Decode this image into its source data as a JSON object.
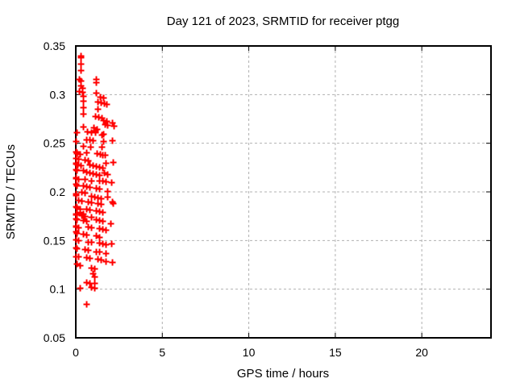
{
  "window": {
    "background": "#ffffff"
  },
  "chart_data": {
    "type": "scatter",
    "title": "Day 121 of 2023, SRMTID for receiver ptgg",
    "xlabel": "GPS time / hours",
    "ylabel": "SRMTID / TECUs",
    "xlim": [
      0,
      24
    ],
    "ylim": [
      0.05,
      0.35
    ],
    "xticks": [
      0,
      5,
      10,
      15,
      20
    ],
    "xtick_labels": [
      "0",
      "5",
      "10",
      "15",
      "20"
    ],
    "yticks": [
      0.05,
      0.1,
      0.15,
      0.2,
      0.25,
      0.3,
      0.35
    ],
    "ytick_labels": [
      "0.05",
      "0.1",
      "0.15",
      "0.2",
      "0.25",
      "0.3",
      "0.35"
    ],
    "grid": true,
    "legend_position": "none",
    "marker_shape": "plus",
    "marker_color": "#ff0000",
    "grid_color": "#b0b0b0",
    "border_color": "#000000",
    "series": [
      {
        "name": "SRMTID",
        "points": [
          [
            0.28,
            0.34
          ],
          [
            0.28,
            0.338
          ],
          [
            0.28,
            0.332
          ],
          [
            0.28,
            0.325
          ],
          [
            0.19,
            0.316
          ],
          [
            0.28,
            0.314
          ],
          [
            1.16,
            0.316
          ],
          [
            1.16,
            0.313
          ],
          [
            0.28,
            0.309
          ],
          [
            0.37,
            0.307
          ],
          [
            0.19,
            0.304
          ],
          [
            0.37,
            0.303
          ],
          [
            1.16,
            0.302
          ],
          [
            0.42,
            0.299
          ],
          [
            1.4,
            0.298
          ],
          [
            1.58,
            0.297
          ],
          [
            0.42,
            0.294
          ],
          [
            1.26,
            0.293
          ],
          [
            1.44,
            0.292
          ],
          [
            1.63,
            0.291
          ],
          [
            1.77,
            0.29
          ],
          [
            0.42,
            0.287
          ],
          [
            1.26,
            0.285
          ],
          [
            0.42,
            0.28
          ],
          [
            1.12,
            0.278
          ],
          [
            1.3,
            0.277
          ],
          [
            1.49,
            0.276
          ],
          [
            1.58,
            0.274
          ],
          [
            1.77,
            0.273
          ],
          [
            1.67,
            0.27
          ],
          [
            1.81,
            0.269
          ],
          [
            0.42,
            0.267
          ],
          [
            1.02,
            0.266
          ],
          [
            1.21,
            0.265
          ],
          [
            1.12,
            0.263
          ],
          [
            1.58,
            0.26
          ],
          [
            2.09,
            0.271
          ],
          [
            2.19,
            0.268
          ],
          [
            0.05,
            0.261
          ],
          [
            0.65,
            0.262
          ],
          [
            0.88,
            0.261
          ],
          [
            1.12,
            0.261
          ],
          [
            1.49,
            0.259
          ],
          [
            0.0,
            0.252
          ],
          [
            0.6,
            0.254
          ],
          [
            0.79,
            0.254
          ],
          [
            0.98,
            0.253
          ],
          [
            1.58,
            0.252
          ],
          [
            2.09,
            0.253
          ],
          [
            0.42,
            0.247
          ],
          [
            0.84,
            0.246
          ],
          [
            1.49,
            0.246
          ],
          [
            0.0,
            0.2415
          ],
          [
            0.03,
            0.2405
          ],
          [
            0.05,
            0.24
          ],
          [
            0.23,
            0.239
          ],
          [
            0.6,
            0.241
          ],
          [
            1.21,
            0.24
          ],
          [
            1.4,
            0.239
          ],
          [
            1.53,
            0.2385
          ],
          [
            1.67,
            0.238
          ],
          [
            0.0,
            0.235
          ],
          [
            0.14,
            0.234
          ],
          [
            0.51,
            0.233
          ],
          [
            0.7,
            0.232
          ],
          [
            0.0,
            0.23
          ],
          [
            0.02,
            0.229
          ],
          [
            0.09,
            0.228
          ],
          [
            0.28,
            0.227
          ],
          [
            0.79,
            0.228
          ],
          [
            0.98,
            0.227
          ],
          [
            1.16,
            0.2265
          ],
          [
            1.35,
            0.226
          ],
          [
            1.53,
            0.225
          ],
          [
            1.72,
            0.23
          ],
          [
            2.14,
            0.231
          ],
          [
            0.0,
            0.223
          ],
          [
            0.05,
            0.222
          ],
          [
            0.42,
            0.222
          ],
          [
            0.6,
            0.221
          ],
          [
            0.79,
            0.22
          ],
          [
            0.98,
            0.219
          ],
          [
            1.16,
            0.218
          ],
          [
            1.35,
            0.217
          ],
          [
            1.63,
            0.22
          ],
          [
            1.81,
            0.218
          ],
          [
            0.0,
            0.215
          ],
          [
            0.02,
            0.214
          ],
          [
            0.14,
            0.213
          ],
          [
            0.51,
            0.213
          ],
          [
            0.88,
            0.212
          ],
          [
            1.35,
            0.212
          ],
          [
            1.53,
            0.2115
          ],
          [
            1.72,
            0.211
          ],
          [
            2.05,
            0.21
          ],
          [
            0.0,
            0.208
          ],
          [
            0.05,
            0.207
          ],
          [
            0.42,
            0.207
          ],
          [
            0.6,
            0.206
          ],
          [
            0.79,
            0.205
          ],
          [
            1.16,
            0.204
          ],
          [
            1.35,
            0.2035
          ],
          [
            1.81,
            0.201
          ],
          [
            0.33,
            0.2
          ],
          [
            0.51,
            0.199
          ],
          [
            0.0,
            0.198
          ],
          [
            0.02,
            0.197
          ],
          [
            0.88,
            0.196
          ],
          [
            1.07,
            0.195
          ],
          [
            1.26,
            0.194
          ],
          [
            1.44,
            0.193
          ],
          [
            1.81,
            0.195
          ],
          [
            2.09,
            0.19
          ],
          [
            0.14,
            0.192
          ],
          [
            0.33,
            0.191
          ],
          [
            0.7,
            0.19
          ],
          [
            0.88,
            0.189
          ],
          [
            1.26,
            0.188
          ],
          [
            1.44,
            0.1875
          ],
          [
            2.14,
            0.188
          ],
          [
            0.0,
            0.185
          ],
          [
            0.05,
            0.184
          ],
          [
            0.23,
            0.183
          ],
          [
            0.6,
            0.1825
          ],
          [
            0.79,
            0.182
          ],
          [
            1.16,
            0.181
          ],
          [
            1.35,
            0.18
          ],
          [
            1.53,
            0.179
          ],
          [
            0.0,
            0.178
          ],
          [
            0.02,
            0.177
          ],
          [
            0.33,
            0.176
          ],
          [
            0.51,
            0.175
          ],
          [
            0.88,
            0.174
          ],
          [
            0.05,
            0.1775
          ],
          [
            0.23,
            0.179
          ],
          [
            0.42,
            0.178
          ],
          [
            0.0,
            0.173
          ],
          [
            0.05,
            0.172
          ],
          [
            0.42,
            0.171
          ],
          [
            0.6,
            0.17
          ],
          [
            1.16,
            0.172
          ],
          [
            1.35,
            0.171
          ],
          [
            1.53,
            0.17
          ],
          [
            2.0,
            0.168
          ],
          [
            0.0,
            0.165
          ],
          [
            0.02,
            0.164
          ],
          [
            0.14,
            0.1635
          ],
          [
            0.7,
            0.164
          ],
          [
            0.88,
            0.1638
          ],
          [
            1.35,
            0.163
          ],
          [
            1.53,
            0.162
          ],
          [
            1.72,
            0.161
          ],
          [
            0.0,
            0.159
          ],
          [
            0.05,
            0.158
          ],
          [
            0.42,
            0.157
          ],
          [
            0.6,
            0.156
          ],
          [
            1.16,
            0.155
          ],
          [
            1.35,
            0.154
          ],
          [
            0.0,
            0.151
          ],
          [
            0.14,
            0.15
          ],
          [
            0.7,
            0.149
          ],
          [
            0.88,
            0.1485
          ],
          [
            1.35,
            0.148
          ],
          [
            1.53,
            0.147
          ],
          [
            1.72,
            0.146
          ],
          [
            2.05,
            0.147
          ],
          [
            0.0,
            0.143
          ],
          [
            0.05,
            0.142
          ],
          [
            0.51,
            0.141
          ],
          [
            0.7,
            0.14
          ],
          [
            1.16,
            0.139
          ],
          [
            1.35,
            0.1385
          ],
          [
            1.72,
            0.137
          ],
          [
            0.0,
            0.134
          ],
          [
            0.14,
            0.1335
          ],
          [
            0.6,
            0.133
          ],
          [
            0.79,
            0.132
          ],
          [
            1.26,
            0.131
          ],
          [
            1.44,
            0.13
          ],
          [
            1.72,
            0.129
          ],
          [
            2.09,
            0.128
          ],
          [
            0.05,
            0.126
          ],
          [
            0.23,
            0.125
          ],
          [
            0.88,
            0.122
          ],
          [
            1.07,
            0.121
          ],
          [
            0.98,
            0.116
          ],
          [
            1.07,
            0.113
          ],
          [
            0.6,
            0.107
          ],
          [
            0.79,
            0.106
          ],
          [
            1.07,
            0.106
          ],
          [
            0.23,
            0.101
          ],
          [
            0.88,
            0.102
          ],
          [
            1.07,
            0.101
          ],
          [
            0.6,
            0.085
          ]
        ]
      }
    ]
  }
}
